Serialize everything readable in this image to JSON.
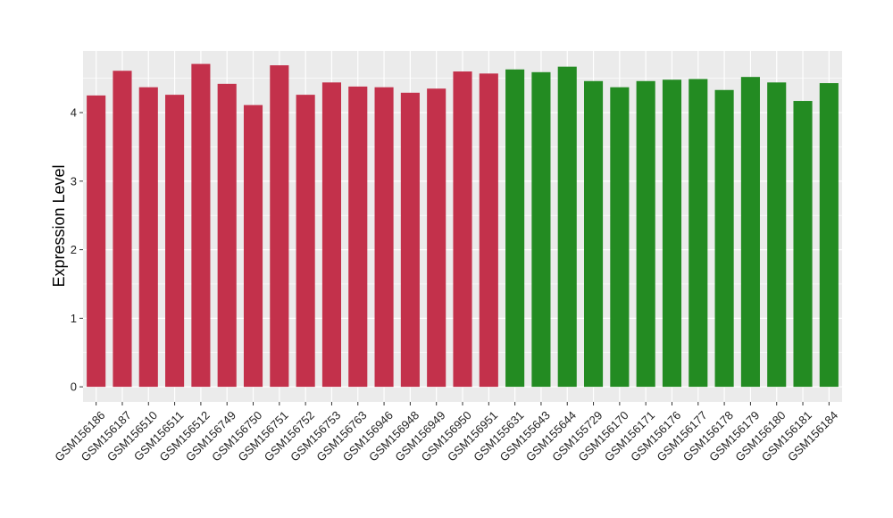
{
  "chart_data": {
    "type": "bar",
    "title": "",
    "xlabel": "",
    "ylabel": "Expression Level",
    "ylim": [
      -0.22,
      4.9
    ],
    "yticks": [
      0,
      1,
      2,
      3,
      4
    ],
    "grid": true,
    "categories": [
      "GSM156186",
      "GSM156187",
      "GSM156510",
      "GSM156511",
      "GSM156512",
      "GSM156749",
      "GSM156750",
      "GSM156751",
      "GSM156752",
      "GSM156753",
      "GSM156763",
      "GSM156946",
      "GSM156948",
      "GSM156949",
      "GSM156950",
      "GSM156951",
      "GSM155631",
      "GSM155643",
      "GSM155644",
      "GSM155729",
      "GSM156170",
      "GSM156171",
      "GSM156176",
      "GSM156177",
      "GSM156178",
      "GSM156179",
      "GSM156180",
      "GSM156181",
      "GSM156184"
    ],
    "values": [
      4.25,
      4.61,
      4.37,
      4.26,
      4.71,
      4.42,
      4.11,
      4.69,
      4.26,
      4.44,
      4.38,
      4.37,
      4.29,
      4.35,
      4.6,
      4.57,
      4.63,
      4.59,
      4.67,
      4.46,
      4.37,
      4.46,
      4.48,
      4.49,
      4.33,
      4.52,
      4.44,
      4.17,
      4.43
    ],
    "colors": [
      "#c3314b",
      "#c3314b",
      "#c3314b",
      "#c3314b",
      "#c3314b",
      "#c3314b",
      "#c3314b",
      "#c3314b",
      "#c3314b",
      "#c3314b",
      "#c3314b",
      "#c3314b",
      "#c3314b",
      "#c3314b",
      "#c3314b",
      "#c3314b",
      "#238b22",
      "#238b22",
      "#238b22",
      "#238b22",
      "#238b22",
      "#238b22",
      "#238b22",
      "#238b22",
      "#238b22",
      "#238b22",
      "#238b22",
      "#238b22",
      "#238b22"
    ],
    "panel_color": "#ebebeb",
    "grid_color": "#ffffff"
  }
}
